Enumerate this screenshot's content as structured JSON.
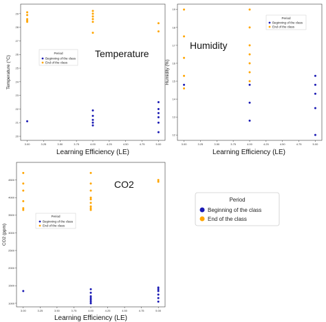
{
  "colors": {
    "beginning": "#1a1ab4",
    "end": "#ffa500"
  },
  "legend_big": {
    "title": "Period",
    "entries": [
      "Beginning of the class",
      "End of the class"
    ]
  },
  "chart_data": [
    {
      "type": "scatter",
      "title": "Temperature",
      "xlabel": "Learning Efficiency (LE)",
      "ylabel": "Temperature (°C)",
      "xlim": [
        2.9,
        5.1
      ],
      "ylim": [
        19.7,
        29.7
      ],
      "xticks": [
        "3.00",
        "3.25",
        "3.50",
        "3.75",
        "4.00",
        "4.25",
        "4.50",
        "4.75",
        "5.00"
      ],
      "yticks": [
        "20",
        "21",
        "22",
        "23",
        "24",
        "25",
        "26",
        "27",
        "28",
        "29"
      ],
      "legend": {
        "title": "Period",
        "entries": [
          "Beginning of the class",
          "End of the class"
        ]
      },
      "series": [
        {
          "name": "Beginning of the class",
          "x": [
            3,
            4,
            4,
            4,
            4,
            4,
            5,
            5,
            5,
            5,
            5,
            5
          ],
          "y": [
            21.1,
            21.5,
            21.2,
            21.0,
            20.8,
            21.9,
            20.3,
            21.0,
            21.4,
            21.7,
            22.0,
            22.5
          ]
        },
        {
          "name": "End of the class",
          "x": [
            3,
            3,
            3,
            3,
            3,
            4,
            4,
            4,
            4,
            4,
            4,
            5,
            5
          ],
          "y": [
            29.1,
            28.9,
            28.6,
            28.5,
            28.4,
            29.2,
            29.0,
            28.8,
            28.6,
            28.4,
            27.6,
            28.3,
            27.7
          ]
        }
      ]
    },
    {
      "type": "scatter",
      "title": "Humidity",
      "xlabel": "Learning Efficiency (LE)",
      "ylabel": "Humidity (%)",
      "xlim": [
        2.9,
        5.1
      ],
      "ylim": [
        11.7,
        19.3
      ],
      "xticks": [
        "3.00",
        "3.25",
        "3.50",
        "3.75",
        "4.00",
        "4.25",
        "4.50",
        "4.75",
        "5.00"
      ],
      "yticks": [
        "12",
        "13",
        "14",
        "15",
        "16",
        "17",
        "18",
        "19"
      ],
      "legend": {
        "title": "Period",
        "entries": [
          "Beginning of the class",
          "End of the class"
        ]
      },
      "series": [
        {
          "name": "Beginning of the class",
          "x": [
            3,
            4,
            4,
            4,
            5,
            5,
            5,
            5,
            5
          ],
          "y": [
            14.8,
            14.8,
            13.8,
            12.8,
            15.3,
            14.8,
            14.3,
            13.5,
            12.0
          ]
        },
        {
          "name": "End of the class",
          "x": [
            3,
            3,
            3,
            3,
            3,
            4,
            4,
            4,
            4,
            4,
            4,
            4
          ],
          "y": [
            19.0,
            17.5,
            16.3,
            15.3,
            14.6,
            19.0,
            18.0,
            17.0,
            16.5,
            16.0,
            15.5,
            15.0
          ]
        }
      ]
    },
    {
      "type": "scatter",
      "title": "CO2",
      "xlabel": "Learning Efficiency (LE)",
      "ylabel": "CO2 (ppm)",
      "xlim": [
        2.9,
        5.1
      ],
      "ylim": [
        900,
        5000
      ],
      "xticks": [
        "3.00",
        "3.25",
        "3.50",
        "3.75",
        "4.00",
        "4.25",
        "4.50",
        "4.75",
        "5.00"
      ],
      "yticks": [
        "1000",
        "1500",
        "2000",
        "2500",
        "3000",
        "3500",
        "4000",
        "4500"
      ],
      "legend": {
        "title": "Period",
        "entries": [
          "Beginning of the class",
          "End of the class"
        ]
      },
      "series": [
        {
          "name": "Beginning of the class",
          "x": [
            3,
            4,
            4,
            4,
            4,
            4,
            4,
            4,
            5,
            5,
            5,
            5,
            5,
            5
          ],
          "y": [
            1350,
            1400,
            1300,
            1200,
            1150,
            1100,
            1050,
            1000,
            1450,
            1400,
            1350,
            1250,
            1150,
            1050
          ]
        },
        {
          "name": "End of the class",
          "x": [
            3,
            3,
            3,
            3,
            3,
            3,
            4,
            4,
            4,
            4,
            4,
            4,
            4,
            4,
            4,
            5,
            5
          ],
          "y": [
            4700,
            4400,
            4200,
            3900,
            3700,
            3650,
            4700,
            4400,
            4200,
            4000,
            3950,
            3850,
            3750,
            3700,
            3650,
            4500,
            4450
          ]
        }
      ]
    }
  ]
}
